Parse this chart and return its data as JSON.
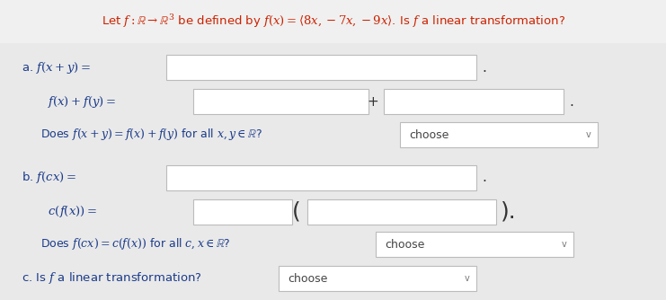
{
  "bg_color": "#e9e9e9",
  "header_bg": "#f5f5f5",
  "white_box_color": "#ffffff",
  "title_color": "#cc2200",
  "label_color": "#1a3a8a",
  "choose_color": "#444444",
  "box_edge_color": "#bbbbbb",
  "title_text": "Let $f : \\mathbb{R} \\rightarrow \\mathbb{R}^3$ be defined by $f(x) = \\langle 8x, -7x, -9x\\rangle$. Is $f$ a linear transformation?",
  "sec_a_line1": "a. $f(x+y) =$",
  "sec_a_line2": "  $f(x) + f(y) =$",
  "sec_a_line3": "Does $f(x+y) = f(x) + f(y)$ for all $x, y \\in \\mathbb{R}$?",
  "sec_b_line1": "b. $f(cx) =$",
  "sec_b_line2": "  $c(f(x)) =$",
  "sec_b_line3": "Does $f(cx) = c(f(x))$ for all $c, x \\in \\mathbb{R}$?",
  "sec_c_line1": "c. Is $f$ a linear transformation?",
  "plus_sign": "+",
  "dot": ".",
  "open_paren": "(",
  "close_dot": ").",
  "choose": "choose",
  "chevron": "v"
}
